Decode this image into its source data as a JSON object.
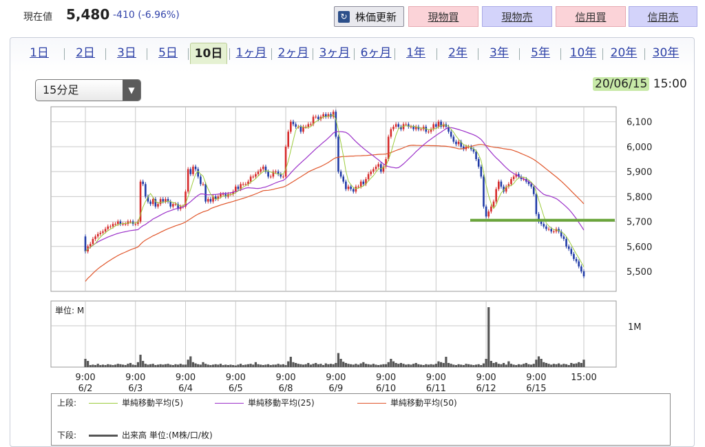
{
  "quote": {
    "label": "現在値",
    "price": "5,480",
    "change": "-410 (-6.96%)"
  },
  "buttons": {
    "refresh": "株価更新",
    "spot_buy": "現物買",
    "spot_sell": "現物売",
    "margin_buy": "信用買",
    "margin_sell": "信用売",
    "refresh_icon": "refresh-icon"
  },
  "period_tabs": [
    "1日",
    "2日",
    "3日",
    "5日",
    "10日",
    "1ヶ月",
    "2ヶ月",
    "3ヶ月",
    "6ヶ月",
    "1年",
    "2年",
    "3年",
    "5年",
    "10年",
    "20年",
    "30年"
  ],
  "selected_tab": "10日",
  "interval_select": {
    "value": "15分足",
    "arrow": "▼"
  },
  "timestamp": {
    "date": "20/06/15",
    "time": "15:00"
  },
  "colors": {
    "sma5": "#9ccc3c",
    "sma25": "#9b30c9",
    "sma50": "#e0552a",
    "candle_up": "#d62a2a",
    "candle_down": "#1f3aa6",
    "volume": "#555555",
    "support_line": "#6aa53a"
  },
  "chart_data": [
    {
      "type": "line",
      "title": "",
      "y_ticks": [
        6100,
        6000,
        5900,
        5800,
        5700,
        5600,
        5500
      ],
      "y_tick_labels": [
        "6,100",
        "6,000",
        "5,900",
        "5,800",
        "5,700",
        "5,600",
        "5,500"
      ],
      "ylim": [
        5420,
        6160
      ],
      "x_tick_labels": [
        [
          "9:00",
          "6/2"
        ],
        [
          "9:00",
          "6/3"
        ],
        [
          "9:00",
          "6/4"
        ],
        [
          "9:00",
          "6/5"
        ],
        [
          "9:00",
          "6/8"
        ],
        [
          "9:00",
          "6/9"
        ],
        [
          "9:00",
          "6/10"
        ],
        [
          "9:00",
          "6/11"
        ],
        [
          "9:00",
          "6/12"
        ],
        [
          "9:00",
          "6/15"
        ],
        [
          "15:00",
          ""
        ]
      ],
      "x_tick_index": [
        0,
        20,
        40,
        60,
        80,
        100,
        120,
        140,
        160,
        180,
        199
      ],
      "grid": true,
      "candlestick_close": [
        5580,
        5600,
        5610,
        5630,
        5640,
        5650,
        5655,
        5660,
        5670,
        5680,
        5680,
        5690,
        5690,
        5700,
        5690,
        5690,
        5690,
        5700,
        5700,
        5690,
        5690,
        5700,
        5860,
        5850,
        5800,
        5780,
        5770,
        5790,
        5760,
        5770,
        5790,
        5780,
        5790,
        5780,
        5760,
        5770,
        5770,
        5750,
        5760,
        5760,
        5820,
        5910,
        5890,
        5920,
        5910,
        5880,
        5850,
        5850,
        5780,
        5790,
        5780,
        5800,
        5790,
        5800,
        5810,
        5810,
        5800,
        5810,
        5810,
        5820,
        5840,
        5830,
        5850,
        5850,
        5850,
        5860,
        5880,
        5880,
        5890,
        5900,
        5910,
        5920,
        5900,
        5880,
        5880,
        5900,
        5900,
        5890,
        5880,
        5880,
        6000,
        6060,
        6100,
        6090,
        6080,
        6080,
        6060,
        6080,
        6080,
        6090,
        6090,
        6120,
        6120,
        6110,
        6120,
        6130,
        6120,
        6130,
        6120,
        6140,
        6040,
        5900,
        5880,
        5860,
        5830,
        5840,
        5830,
        5820,
        5840,
        5840,
        5860,
        5850,
        5870,
        5890,
        5900,
        5910,
        5920,
        5930,
        5900,
        5920,
        5950,
        6040,
        6070,
        6080,
        6090,
        6080,
        6070,
        6090,
        6090,
        6080,
        6080,
        6070,
        6080,
        6070,
        6070,
        6080,
        6060,
        6060,
        6070,
        6090,
        6080,
        6100,
        6080,
        6090,
        6080,
        6060,
        6040,
        6020,
        6010,
        6020,
        6000,
        5990,
        6000,
        6000,
        5990,
        5980,
        5950,
        5920,
        5880,
        5760,
        5720,
        5740,
        5760,
        5780,
        5830,
        5860,
        5840,
        5820,
        5840,
        5850,
        5870,
        5880,
        5890,
        5880,
        5870,
        5870,
        5860,
        5850,
        5840,
        5810,
        5730,
        5700,
        5690,
        5680,
        5670,
        5670,
        5660,
        5660,
        5670,
        5660,
        5640,
        5630,
        5600,
        5590,
        5570,
        5550,
        5540,
        5520,
        5500,
        5480
      ],
      "series": [
        {
          "name": "単純移動平均(5)",
          "values": []
        },
        {
          "name": "単純移動平均(25)",
          "values": []
        },
        {
          "name": "単純移動平均(50)",
          "values": []
        }
      ],
      "support_level": 5705
    },
    {
      "type": "bar",
      "title": "",
      "unit_label": "単位: M",
      "y_tick_labels": [
        "1M"
      ],
      "ylim": [
        0,
        1.6
      ],
      "volume": [
        0.2,
        0.15,
        0.05,
        0.06,
        0.05,
        0.08,
        0.05,
        0.06,
        0.05,
        0.07,
        0.06,
        0.05,
        0.06,
        0.08,
        0.07,
        0.06,
        0.05,
        0.08,
        0.1,
        0.06,
        0.05,
        0.12,
        0.3,
        0.15,
        0.08,
        0.06,
        0.07,
        0.08,
        0.05,
        0.06,
        0.07,
        0.06,
        0.07,
        0.08,
        0.06,
        0.05,
        0.07,
        0.06,
        0.08,
        0.06,
        0.06,
        0.18,
        0.26,
        0.12,
        0.09,
        0.07,
        0.06,
        0.12,
        0.08,
        0.06,
        0.05,
        0.06,
        0.07,
        0.06,
        0.08,
        0.05,
        0.06,
        0.05,
        0.06,
        0.05,
        0.04,
        0.06,
        0.08,
        0.05,
        0.06,
        0.07,
        0.08,
        0.06,
        0.12,
        0.07,
        0.06,
        0.05,
        0.06,
        0.07,
        0.05,
        0.06,
        0.06,
        0.08,
        0.06,
        0.07,
        0.05,
        0.14,
        0.25,
        0.12,
        0.1,
        0.08,
        0.07,
        0.06,
        0.07,
        0.1,
        0.06,
        0.08,
        0.1,
        0.07,
        0.08,
        0.05,
        0.09,
        0.07,
        0.08,
        0.07,
        0.1,
        0.34,
        0.2,
        0.13,
        0.1,
        0.08,
        0.07,
        0.06,
        0.08,
        0.06,
        0.09,
        0.12,
        0.08,
        0.07,
        0.06,
        0.08,
        0.06,
        0.05,
        0.06,
        0.07,
        0.07,
        0.12,
        0.2,
        0.14,
        0.1,
        0.08,
        0.1,
        0.08,
        0.06,
        0.07,
        0.06,
        0.08,
        0.1,
        0.07,
        0.06,
        0.05,
        0.07,
        0.06,
        0.07,
        0.06,
        0.08,
        0.14,
        0.12,
        0.1,
        0.25,
        0.1,
        0.08,
        0.06,
        0.05,
        0.07,
        0.06,
        0.05,
        0.08,
        0.07,
        0.06,
        0.05,
        0.06,
        0.07,
        0.05,
        0.09,
        0.2,
        1.45,
        0.15,
        0.1,
        0.12,
        0.08,
        0.07,
        0.1,
        0.06,
        0.14,
        0.08,
        0.06,
        0.05,
        0.07,
        0.06,
        0.08,
        0.1,
        0.07,
        0.06,
        0.08,
        0.18,
        0.26,
        0.2,
        0.12,
        0.1,
        0.08,
        0.06,
        0.08,
        0.07,
        0.09,
        0.06,
        0.08,
        0.07,
        0.05,
        0.1,
        0.08,
        0.09,
        0.12,
        0.1,
        0.18
      ]
    }
  ],
  "legend": {
    "upper_label": "上段:",
    "sma5": "単純移動平均(5)",
    "sma25": "単純移動平均(25)",
    "sma50": "単純移動平均(50)",
    "lower_label": "下段:",
    "volume": "出来高 単位:(M株/口/枚)"
  }
}
